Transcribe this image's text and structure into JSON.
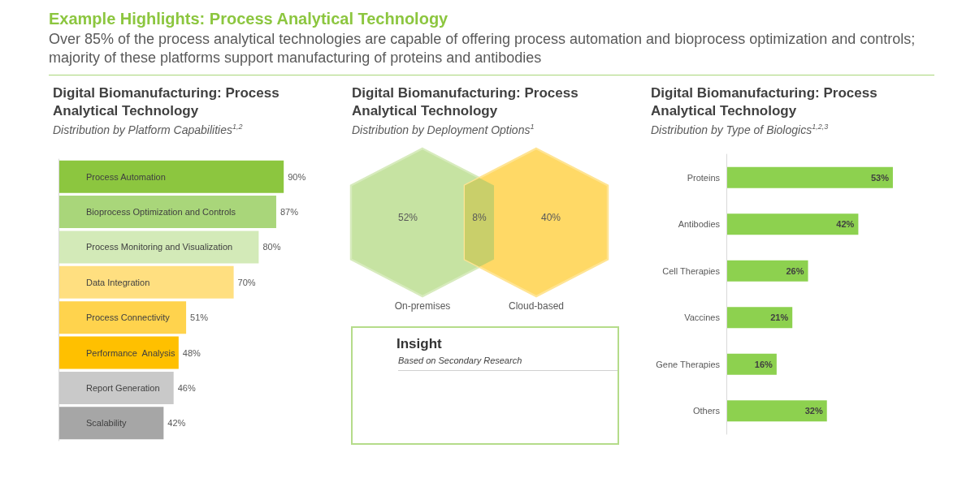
{
  "chart_data": [
    {
      "type": "other",
      "title": "Example Highlights: Process Analytical Technology",
      "subtitle": "Over 85% of the process analytical technologies are capable of offering process automation and bioprocess optimization and controls; majority of these platforms support manufacturing of proteins and antibodies"
    },
    {
      "type": "bar",
      "orientation": "horizontal",
      "title": "Digital Biomanufacturing: Process Analytical Technology",
      "subtitle": "Distribution by Platform Capabilities$^{1,2}$",
      "categories": [
        "Process Automation",
        "Bioprocess Optimization and Controls",
        "Process Monitoring and Visualization",
        "Data Integration",
        "Process Connectivity",
        "Performance  Analysis",
        "Report Generation",
        "Scalability"
      ],
      "values": [
        90,
        87,
        80,
        70,
        51,
        48,
        46,
        42
      ],
      "colors": [
        "#8cc63f",
        "#a9d67a",
        "#d3eab8",
        "#ffdf80",
        "#ffd34d",
        "#ffc000",
        "#c9c9c9",
        "#a6a6a6"
      ],
      "value_labels": [
        "90%",
        "87%",
        "80%",
        "70%",
        "51%",
        "48%",
        "46%",
        "42%"
      ]
    },
    {
      "type": "other",
      "title": "Digital Biomanufacturing: Process Analytical Technology",
      "subtitle": "Distribution by Deployment Options$^{1}$",
      "categories": [
        "On-premises",
        null,
        "Cloud-based"
      ],
      "values": [
        52,
        8,
        40
      ],
      "colors": [
        "#c6e3a2",
        "#c9cf6a",
        "#ffd966"
      ],
      "value_labels": [
        "52%",
        "8%",
        "40%"
      ]
    },
    {
      "type": "bar",
      "orientation": "horizontal",
      "title": "Digital Biomanufacturing: Process Analytical Technology",
      "subtitle": "Distribution by Type of Biologics$^{1,2,3}$",
      "categories": [
        "Proteins",
        "Antibodies",
        "Cell Therapies",
        "Vaccines",
        "Gene Therapies",
        "Others"
      ],
      "values": [
        53,
        42,
        26,
        21,
        16,
        32
      ],
      "color": "#8dd14f",
      "value_labels": [
        "53%",
        "42%",
        "26%",
        "21%",
        "16%",
        "32%"
      ]
    },
    {
      "type": "other",
      "title": "Insight",
      "subtitle": "Based on Secondary Research"
    }
  ]
}
